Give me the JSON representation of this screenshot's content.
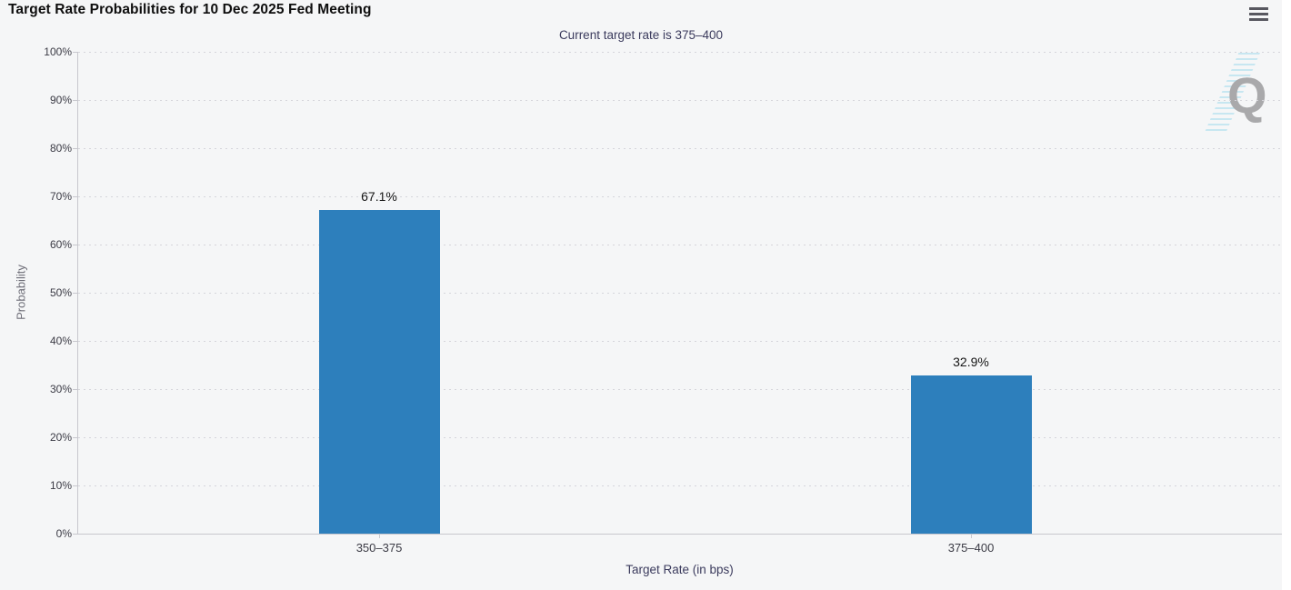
{
  "header": {
    "title": "Target Rate Probabilities for 10 Dec 2025 Fed Meeting",
    "menu_icon": "hamburger-menu-icon"
  },
  "chart_data": {
    "type": "bar",
    "title": "Target Rate Probabilities for 10 Dec 2025 Fed Meeting",
    "subtitle": "Current target rate is 375–400",
    "categories": [
      "350–375",
      "375–400"
    ],
    "values": [
      67.1,
      32.9
    ],
    "value_labels": [
      "67.1%",
      "32.9%"
    ],
    "xlabel": "Target Rate (in bps)",
    "ylabel": "Probability",
    "ylim": [
      0,
      100
    ],
    "ytick_step": 10,
    "ytick_labels": [
      "0%",
      "10%",
      "20%",
      "30%",
      "40%",
      "50%",
      "60%",
      "70%",
      "80%",
      "90%",
      "100%"
    ],
    "grid": true,
    "legend": false,
    "bar_color": "#2d7fbc"
  },
  "watermark": {
    "letter": "Q"
  }
}
